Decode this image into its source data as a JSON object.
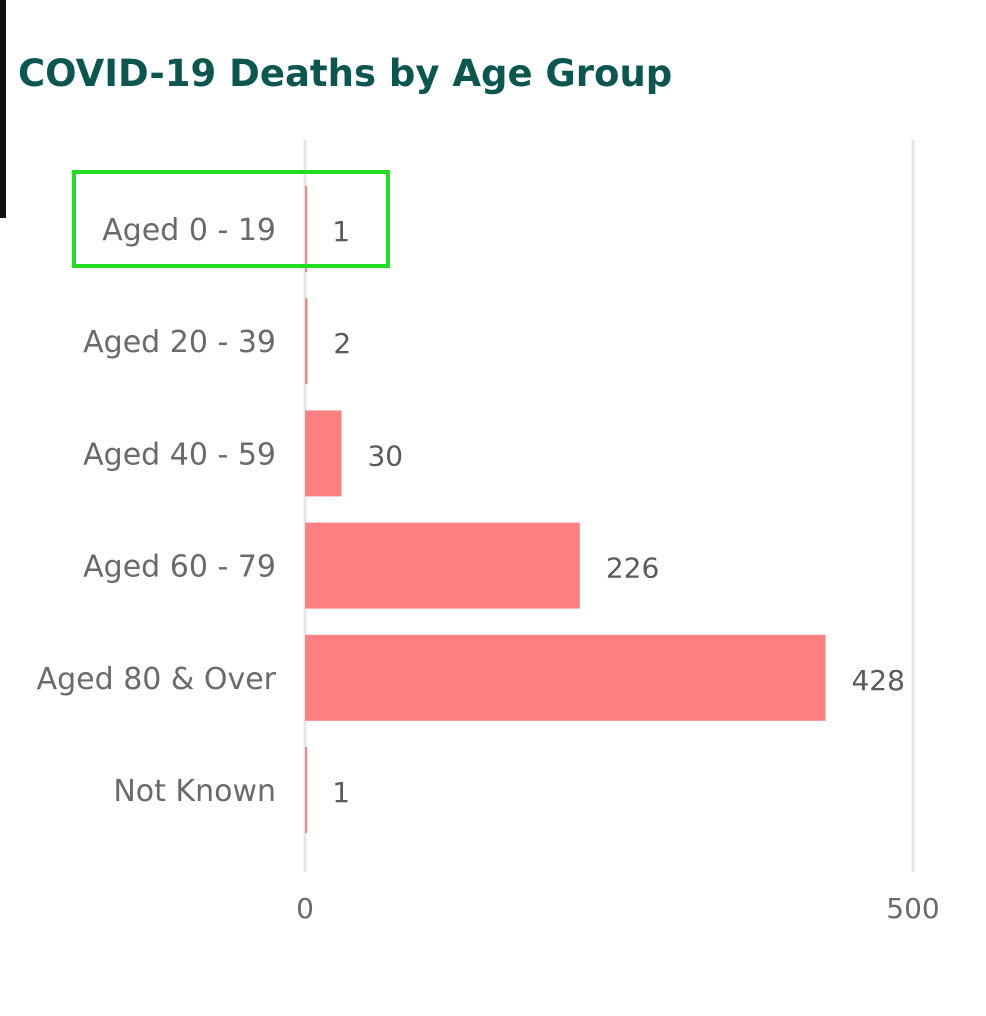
{
  "chart_data": {
    "type": "bar",
    "orientation": "horizontal",
    "title": "COVID-19 Deaths by Age Group",
    "categories": [
      "Aged 0 - 19",
      "Aged 20 - 39",
      "Aged 40 - 59",
      "Aged 60 - 79",
      "Aged 80 & Over",
      "Not Known"
    ],
    "values": [
      1,
      2,
      30,
      226,
      428,
      1
    ],
    "xlim": [
      0,
      500
    ],
    "xticks": [
      "0",
      "500"
    ],
    "xlabel": "",
    "ylabel": "",
    "grid": true,
    "bar_color": "#ff8080",
    "highlighted_category": "Aged 0 - 19",
    "highlight_color": "#22dd22"
  },
  "colors": {
    "title": "#0b5750",
    "gridline": "#e6e6e6",
    "text": "#6a6a6a"
  }
}
